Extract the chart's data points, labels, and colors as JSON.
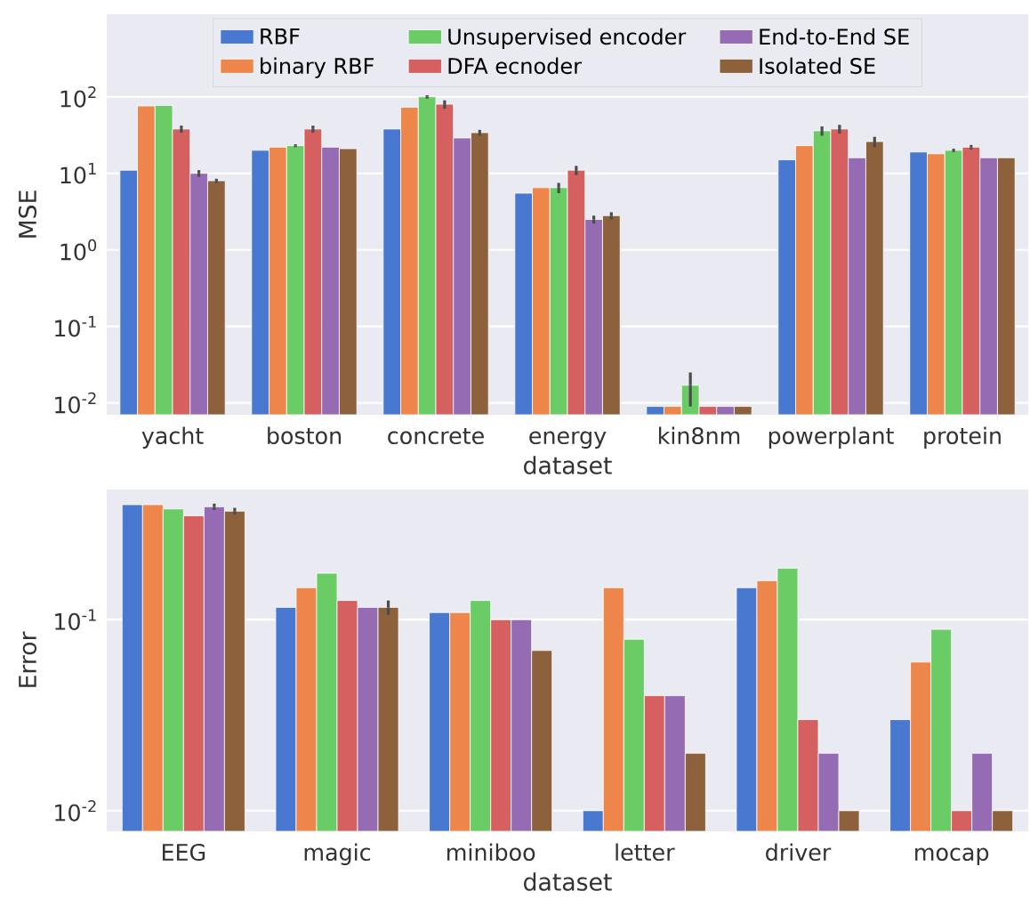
{
  "chart_data": [
    {
      "type": "bar",
      "xlabel": "dataset",
      "ylabel": "MSE",
      "log": "y",
      "grid": "y",
      "legend": "top",
      "categories": [
        "yacht",
        "boston",
        "concrete",
        "energy",
        "kin8nm",
        "powerplant",
        "protein"
      ],
      "ylim": [
        0.007,
        1200
      ],
      "yticks": [
        {
          "value": 0.01,
          "label": "10$^{-2}$"
        },
        {
          "value": 0.1,
          "label": "10$^{-1}$"
        },
        {
          "value": 1,
          "label": "10$^{0}$"
        },
        {
          "value": 10,
          "label": "10$^{1}$"
        },
        {
          "value": 100,
          "label": "10$^{2}$"
        }
      ],
      "series": [
        {
          "name": "RBF",
          "color": "#4878d0",
          "values": [
            11,
            20,
            38,
            5.5,
            0.009,
            15,
            19
          ]
        },
        {
          "name": "binary RBF",
          "color": "#ee854a",
          "values": [
            76,
            22,
            73,
            6.5,
            0.009,
            23,
            18
          ]
        },
        {
          "name": "Unsupervised encoder",
          "color": "#6acc64",
          "values": [
            77,
            23,
            100,
            6.5,
            0.017,
            36,
            20
          ],
          "errors": [
            null,
            1,
            5,
            1,
            0.008,
            5,
            1
          ]
        },
        {
          "name": "DFA ecnoder",
          "color": "#d65f5f",
          "values": [
            38,
            38,
            80,
            11,
            0.009,
            38,
            22
          ],
          "errors": [
            4,
            4,
            10,
            1.5,
            null,
            5,
            1.5
          ]
        },
        {
          "name": "End-to-End SE",
          "color": "#956cb4",
          "values": [
            10,
            22,
            29,
            2.5,
            0.009,
            16,
            16
          ],
          "errors": [
            1,
            null,
            null,
            0.3,
            null,
            null,
            null
          ]
        },
        {
          "name": "Isolated SE",
          "color": "#8c613c",
          "values": [
            8,
            21,
            34,
            2.8,
            0.009,
            26,
            16
          ],
          "errors": [
            0.5,
            null,
            3,
            0.3,
            null,
            4,
            null
          ]
        }
      ]
    },
    {
      "type": "bar",
      "xlabel": "dataset",
      "ylabel": "Error",
      "log": "y",
      "grid": "y",
      "categories": [
        "EEG",
        "magic",
        "miniboo",
        "letter",
        "driver",
        "mocap"
      ],
      "ylim": [
        0.0078,
        0.48
      ],
      "yticks": [
        {
          "value": 0.01,
          "label": "10$^{-2}$"
        },
        {
          "value": 0.1,
          "label": "10$^{-1}$"
        }
      ],
      "series": [
        {
          "color": "#4878d0",
          "values": [
            0.4,
            0.116,
            0.109,
            0.01,
            0.147,
            0.03
          ]
        },
        {
          "color": "#ee854a",
          "values": [
            0.4,
            0.147,
            0.109,
            0.147,
            0.16,
            0.06
          ]
        },
        {
          "color": "#6acc64",
          "values": [
            0.38,
            0.175,
            0.126,
            0.079,
            0.186,
            0.089
          ]
        },
        {
          "color": "#d65f5f",
          "values": [
            0.35,
            0.126,
            0.1,
            0.04,
            0.03,
            0.01
          ]
        },
        {
          "color": "#956cb4",
          "values": [
            0.39,
            0.116,
            0.1,
            0.04,
            0.02,
            0.02
          ],
          "errors": [
            0.015,
            null,
            null,
            null,
            null,
            null
          ]
        },
        {
          "color": "#8c613c",
          "values": [
            0.37,
            0.116,
            0.069,
            0.02,
            0.01,
            0.01
          ],
          "errors": [
            0.015,
            0.01,
            null,
            null,
            null,
            null
          ]
        }
      ]
    }
  ]
}
